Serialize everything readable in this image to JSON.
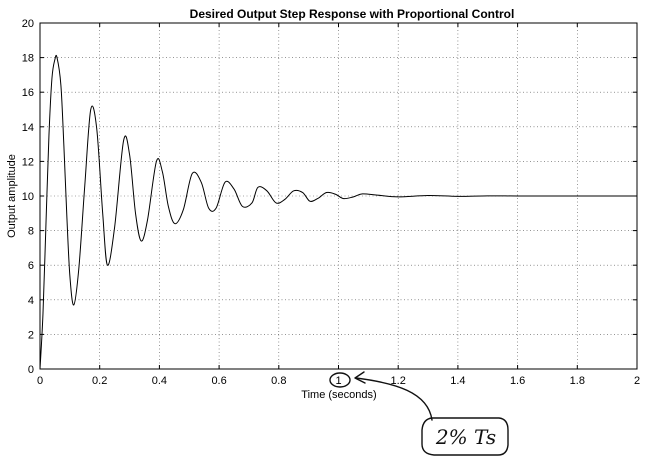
{
  "chart_data": {
    "type": "line",
    "title": "Desired Output Step Response with Proportional Control",
    "xlabel": "Time (seconds)",
    "ylabel": "Output amplitude",
    "xlim": [
      0,
      2
    ],
    "ylim": [
      0,
      20
    ],
    "xticks": [
      "0",
      "0.2",
      "0.4",
      "0.6",
      "0.8",
      "1",
      "1.2",
      "1.4",
      "1.6",
      "1.8",
      "2"
    ],
    "yticks": [
      "0",
      "2",
      "4",
      "6",
      "8",
      "10",
      "12",
      "14",
      "16",
      "18",
      "20"
    ],
    "grid": true,
    "series": [
      {
        "x": [
          0,
          0.01,
          0.02,
          0.03,
          0.04,
          0.05,
          0.057,
          0.07,
          0.08,
          0.09,
          0.1,
          0.113,
          0.13,
          0.15,
          0.17,
          0.19,
          0.21,
          0.226,
          0.25,
          0.28,
          0.3,
          0.32,
          0.339,
          0.36,
          0.39,
          0.41,
          0.43,
          0.452,
          0.48,
          0.51,
          0.54,
          0.565,
          0.59,
          0.62,
          0.65,
          0.678,
          0.71,
          0.73,
          0.76,
          0.791,
          0.82,
          0.85,
          0.88,
          0.904,
          0.93,
          0.96,
          0.99,
          1.017,
          1.05,
          1.08,
          1.13,
          1.2,
          1.3,
          1.4,
          1.5,
          1.6,
          1.7,
          1.8,
          1.9,
          2.0
        ],
        "y": [
          0,
          3.2,
          8.4,
          13.5,
          16.8,
          17.9,
          18.0,
          16.4,
          12.9,
          8.8,
          5.4,
          3.7,
          5.8,
          10.6,
          15.0,
          13.9,
          9.0,
          6.0,
          8.2,
          13.2,
          12.4,
          9.0,
          7.4,
          8.6,
          12.0,
          11.4,
          9.4,
          8.4,
          9.2,
          11.3,
          10.8,
          9.3,
          9.3,
          10.8,
          10.4,
          9.4,
          9.6,
          10.5,
          10.3,
          9.6,
          9.8,
          10.3,
          10.2,
          9.7,
          9.85,
          10.2,
          10.1,
          9.85,
          9.95,
          10.12,
          10.05,
          9.95,
          10.03,
          9.98,
          10.01,
          10.0,
          10.0,
          10.0,
          10.0,
          10.0
        ]
      }
    ]
  },
  "annotation": {
    "circled_tick": "1",
    "note": "2% Ts"
  }
}
